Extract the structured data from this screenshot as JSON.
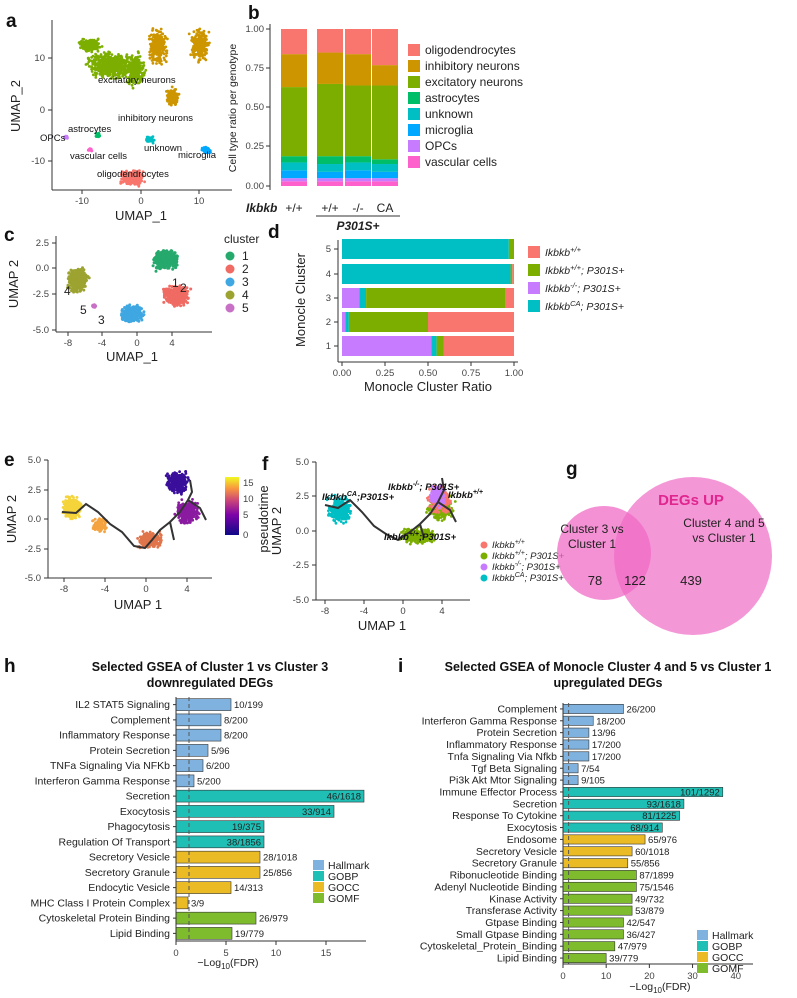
{
  "panel_labels": [
    "a",
    "b",
    "c",
    "d",
    "e",
    "f",
    "g",
    "h",
    "i"
  ],
  "colors": {
    "oligodendrocytes": "#f8766d",
    "inhibitory": "#cd9600",
    "excitatory": "#7cae00",
    "astrocytes": "#00be67",
    "unknown": "#00bfc4",
    "microglia": "#00a9ff",
    "opcs": "#c77cff",
    "vascular": "#ff61cc",
    "cl1": "#26a96c",
    "cl2": "#ef6b63",
    "cl3": "#3fa7e1",
    "cl4": "#9da330",
    "cl5": "#c870c6",
    "g_wt": "#f8766d",
    "g_p301": "#7cae00",
    "g_ko": "#c77cff",
    "g_ca": "#00bfc4",
    "hallmark": "#7fb2de",
    "gobp": "#1fbfb6",
    "gocc": "#ebbb25",
    "gomf": "#7fbc2d",
    "venn": "#f06bc6",
    "venn_title": "#e0268f"
  },
  "panel_a": {
    "xlabel": "UMAP_1",
    "ylabel": "UMAP_2",
    "xticks": [
      "-10",
      "0",
      "10"
    ],
    "yticks": [
      "10",
      "0",
      "-10"
    ],
    "labels": [
      "excitatory neurons",
      "inhibitory neurons",
      "astrocytes",
      "OPCs",
      "unknown",
      "microglia",
      "vascular cells",
      "oligodendrocytes"
    ]
  },
  "panel_b": {
    "chart_data": {
      "type": "bar",
      "ylabel": "Cell type ratio per genotype",
      "yticks": [
        "1.00",
        "0.75",
        "0.50",
        "0.25",
        "0.00"
      ],
      "row_label": "Ikbkb",
      "categories": [
        "+/+",
        "+/+",
        "-/-",
        "CA"
      ],
      "group_label": "P301S+",
      "legend": [
        "oligodendrocytes",
        "inhibitory neurons",
        "excitatory neurons",
        "astrocytes",
        "unknown",
        "microglia",
        "OPCs",
        "vascular cells"
      ],
      "series": [
        {
          "name": "vascular cells",
          "values": [
            0.03,
            0.03,
            0.03,
            0.03
          ]
        },
        {
          "name": "OPCs",
          "values": [
            0.02,
            0.02,
            0.02,
            0.02
          ]
        },
        {
          "name": "microglia",
          "values": [
            0.05,
            0.04,
            0.05,
            0.04
          ]
        },
        {
          "name": "unknown",
          "values": [
            0.05,
            0.05,
            0.05,
            0.05
          ]
        },
        {
          "name": "astrocytes",
          "values": [
            0.04,
            0.05,
            0.04,
            0.03
          ]
        },
        {
          "name": "excitatory neurons",
          "values": [
            0.44,
            0.46,
            0.45,
            0.47
          ]
        },
        {
          "name": "inhibitory neurons",
          "values": [
            0.21,
            0.2,
            0.2,
            0.13
          ]
        },
        {
          "name": "oligodendrocytes",
          "values": [
            0.16,
            0.15,
            0.16,
            0.23
          ]
        }
      ]
    }
  },
  "panel_c": {
    "xlabel": "UMAP_1",
    "ylabel": "UMAP 2",
    "xticks": [
      "-8",
      "-4",
      "0",
      "4"
    ],
    "yticks": [
      "2.5",
      "0.0",
      "-2.5",
      "-5.0"
    ],
    "legend_title": "cluster",
    "clusters": [
      "1",
      "2",
      "3",
      "4",
      "5"
    ]
  },
  "panel_d": {
    "chart_data": {
      "type": "bar",
      "xlabel": "Monocle Cluster Ratio",
      "ylabel": "Monocle Cluster",
      "xticks": [
        "0.00",
        "0.25",
        "0.50",
        "0.75",
        "1.00"
      ],
      "categories": [
        "5",
        "4",
        "3",
        "2",
        "1"
      ],
      "legend": [
        "Ikbkb+/+",
        "Ikbkb+/+; P301S+",
        "Ikbkb-/-; P301S+",
        "IkbkbCA; P301S+"
      ],
      "series": [
        {
          "name": "Ikbkb-/-; P301S+",
          "values": [
            0.0,
            0.0,
            0.1,
            0.02,
            0.52
          ]
        },
        {
          "name": "IkbkbCA; P301S+",
          "values": [
            0.97,
            0.98,
            0.04,
            0.02,
            0.03
          ]
        },
        {
          "name": "Ikbkb+/+; P301S+",
          "values": [
            0.03,
            0.01,
            0.81,
            0.46,
            0.04
          ]
        },
        {
          "name": "Ikbkb+/+",
          "values": [
            0.0,
            0.01,
            0.05,
            0.5,
            0.41
          ]
        }
      ]
    }
  },
  "panel_e": {
    "xlabel": "UMAP 1",
    "ylabel": "UMAP 2",
    "xticks": [
      "-8",
      "-4",
      "0",
      "4"
    ],
    "yticks": [
      "5.0",
      "2.5",
      "0.0",
      "-2.5",
      "-5.0"
    ],
    "legend_title": "pseudotime",
    "scale_ticks": [
      "15",
      "10",
      "5",
      "0"
    ]
  },
  "panel_f": {
    "xlabel": "UMAP 1",
    "ylabel": "UMAP 2",
    "xticks": [
      "-8",
      "-4",
      "0",
      "4"
    ],
    "yticks": [
      "5.0",
      "2.5",
      "0.0",
      "-2.5",
      "-5.0"
    ],
    "legend": [
      "Ikbkb+/+",
      "Ikbkb+/+; P301S+",
      "Ikbkb-/-; P301S+",
      "IkbkbCA; P301S+"
    ]
  },
  "panel_g": {
    "title": "DEGs UP",
    "left_label_1": "Cluster 3 vs",
    "left_label_2": "Cluster 1",
    "right_label_1": "Cluster 4 and 5",
    "right_label_2": "vs Cluster 1",
    "only_left": "78",
    "overlap": "122",
    "only_right": "439"
  },
  "panel_h": {
    "chart_data": {
      "type": "bar",
      "title_1": "Selected GSEA of Cluster 1 vs Cluster 3",
      "title_2": "downregulated DEGs",
      "xlabel": "-Log10(FDR)",
      "xticks": [
        "0",
        "5",
        "10",
        "15"
      ],
      "xlim": [
        0,
        19
      ],
      "threshold": 1.3,
      "legend": [
        "Hallmark",
        "GOBP",
        "GOCC",
        "GOMF"
      ],
      "terms": [
        {
          "name": "IL2 STAT5 Signaling",
          "value": 5.5,
          "label": "10/199",
          "cat": "Hallmark"
        },
        {
          "name": "Complement",
          "value": 4.5,
          "label": "8/200",
          "cat": "Hallmark"
        },
        {
          "name": "Inflammatory Response",
          "value": 4.5,
          "label": "8/200",
          "cat": "Hallmark"
        },
        {
          "name": "Protein Secretion",
          "value": 3.2,
          "label": "5/96",
          "cat": "Hallmark"
        },
        {
          "name": "TNFa Signaling Via NFKb",
          "value": 2.7,
          "label": "6/200",
          "cat": "Hallmark"
        },
        {
          "name": "Interferon Gamma Response",
          "value": 1.8,
          "label": "5/200",
          "cat": "Hallmark"
        },
        {
          "name": "Secretion",
          "value": 18.8,
          "label": "46/1618",
          "cat": "GOBP"
        },
        {
          "name": "Exocytosis",
          "value": 15.8,
          "label": "33/914",
          "cat": "GOBP"
        },
        {
          "name": "Phagocytosis",
          "value": 8.8,
          "label": "19/375",
          "cat": "GOBP"
        },
        {
          "name": "Regulation Of Transport",
          "value": 8.8,
          "label": "38/1856",
          "cat": "GOBP"
        },
        {
          "name": "Secretory Vesicle",
          "value": 8.4,
          "label": "28/1018",
          "cat": "GOCC"
        },
        {
          "name": "Secretory Granule",
          "value": 8.4,
          "label": "25/856",
          "cat": "GOCC"
        },
        {
          "name": "Endocytic Vesicle",
          "value": 5.5,
          "label": "14/313",
          "cat": "GOCC"
        },
        {
          "name": "MHC Class I Protein Complex",
          "value": 1.2,
          "label": "3/9",
          "cat": "GOCC"
        },
        {
          "name": "Cytoskeletal Protein Binding",
          "value": 8.0,
          "label": "26/979",
          "cat": "GOMF"
        },
        {
          "name": "Lipid Binding",
          "value": 5.6,
          "label": "19/779",
          "cat": "GOMF"
        }
      ]
    }
  },
  "panel_i": {
    "chart_data": {
      "type": "bar",
      "title_1": "Selected GSEA of Monocle Cluster 4 and 5 vs Cluster 1",
      "title_2": "upregulated DEGs",
      "xlabel": "-Log10(FDR)",
      "xticks": [
        "0",
        "10",
        "20",
        "30",
        "40"
      ],
      "xlim": [
        0,
        44
      ],
      "threshold": 1.3,
      "legend": [
        "Hallmark",
        "GOBP",
        "GOCC",
        "GOMF"
      ],
      "terms": [
        {
          "name": "Complement",
          "value": 14,
          "label": "26/200",
          "cat": "Hallmark"
        },
        {
          "name": "Interferon Gamma Response",
          "value": 7,
          "label": "18/200",
          "cat": "Hallmark"
        },
        {
          "name": "Protein Secretion",
          "value": 6,
          "label": "13/96",
          "cat": "Hallmark"
        },
        {
          "name": "Inflammatory Response",
          "value": 6,
          "label": "17/200",
          "cat": "Hallmark"
        },
        {
          "name": "Tnfa Signaling Via Nfkb",
          "value": 6,
          "label": "17/200",
          "cat": "Hallmark"
        },
        {
          "name": "Tgf Beta Signaling",
          "value": 3.5,
          "label": "7/54",
          "cat": "Hallmark"
        },
        {
          "name": "Pi3k Akt Mtor Signaling",
          "value": 3.5,
          "label": "9/105",
          "cat": "Hallmark"
        },
        {
          "name": "Immune Effector Process",
          "value": 37,
          "label": "101/1292",
          "cat": "GOBP"
        },
        {
          "name": "Secretion",
          "value": 28,
          "label": "93/1618",
          "cat": "GOBP"
        },
        {
          "name": "Response To Cytokine",
          "value": 27,
          "label": "81/1225",
          "cat": "GOBP"
        },
        {
          "name": "Exocytosis",
          "value": 23,
          "label": "68/914",
          "cat": "GOBP"
        },
        {
          "name": "Endosome",
          "value": 19,
          "label": "65/976",
          "cat": "GOCC"
        },
        {
          "name": "Secretory Vesicle",
          "value": 16,
          "label": "60/1018",
          "cat": "GOCC"
        },
        {
          "name": "Secretory Granule",
          "value": 15,
          "label": "55/856",
          "cat": "GOCC"
        },
        {
          "name": "Ribonucleotide Binding",
          "value": 17,
          "label": "87/1899",
          "cat": "GOMF"
        },
        {
          "name": "Adenyl Nucleotide Binding",
          "value": 17,
          "label": "75/1546",
          "cat": "GOMF"
        },
        {
          "name": "Kinase Activity",
          "value": 16,
          "label": "49/732",
          "cat": "GOMF"
        },
        {
          "name": "Transferase Activity",
          "value": 16,
          "label": "53/879",
          "cat": "GOMF"
        },
        {
          "name": "Gtpase Binding",
          "value": 14,
          "label": "42/547",
          "cat": "GOMF"
        },
        {
          "name": "Small Gtpase Binding",
          "value": 14,
          "label": "36/427",
          "cat": "GOMF"
        },
        {
          "name": "Cytoskeletal_Protein_Binding",
          "value": 12,
          "label": "47/979",
          "cat": "GOMF"
        },
        {
          "name": "Lipid Binding",
          "value": 10,
          "label": "39/779",
          "cat": "GOMF"
        }
      ]
    }
  }
}
